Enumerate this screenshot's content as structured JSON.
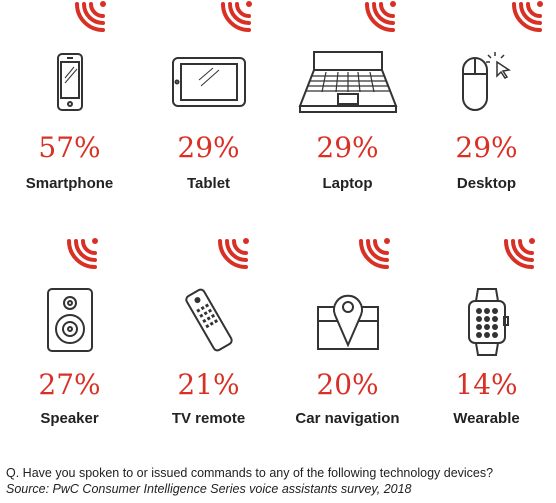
{
  "chart_data": {
    "type": "table",
    "question": "Q. Have you spoken to or issued commands to any of the following technology devices?",
    "source": "Source: PwC Consumer Intelligence Series voice assistants survey, 2018",
    "accent_color": "#d93025",
    "items": [
      {
        "label": "Smartphone",
        "value": 57,
        "display": "57%",
        "icon": "smartphone-icon"
      },
      {
        "label": "Tablet",
        "value": 29,
        "display": "29%",
        "icon": "tablet-icon"
      },
      {
        "label": "Laptop",
        "value": 29,
        "display": "29%",
        "icon": "laptop-icon"
      },
      {
        "label": "Desktop",
        "value": 29,
        "display": "29%",
        "icon": "mouse-icon"
      },
      {
        "label": "Speaker",
        "value": 27,
        "display": "27%",
        "icon": "speaker-icon"
      },
      {
        "label": "TV remote",
        "value": 21,
        "display": "21%",
        "icon": "remote-icon"
      },
      {
        "label": "Car navigation",
        "value": 20,
        "display": "20%",
        "icon": "map-pin-icon"
      },
      {
        "label": "Wearable",
        "value": 14,
        "display": "14%",
        "icon": "smartwatch-icon"
      }
    ]
  }
}
